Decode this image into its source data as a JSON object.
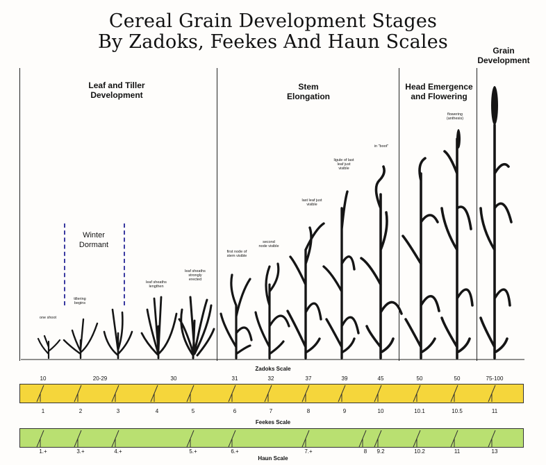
{
  "title": {
    "line1": "Cereal Grain Development Stages",
    "line2": "By Zadoks, Feekes And Haun Scales"
  },
  "sections": {
    "leaf_tiller": "Leaf and Tiller Development",
    "winter_dormant": "Winter Dormant",
    "stem_elongation": "Stem Elongation",
    "head_emergence": "Head Emergence and Flowering",
    "grain_development": "Grain Development"
  },
  "notes": [
    "one shoot",
    "tillering begins",
    "leaf sheaths lengthen",
    "leaf sheaths strongly erected",
    "first node of stem visible",
    "second node visible",
    "last leaf just visible",
    "ligule of last leaf just visible",
    "in \"boot\"",
    "flowering (anthesis)"
  ],
  "zadoks": {
    "label": "Zadoks Scale",
    "values": [
      "10",
      "20-29",
      "30",
      "31",
      "32",
      "37",
      "39",
      "45",
      "50",
      "50",
      "75-100"
    ]
  },
  "feekes": {
    "label": "Feekes Scale",
    "values": [
      "1",
      "2",
      "3",
      "4",
      "5",
      "6",
      "7",
      "8",
      "9",
      "10",
      "10.1",
      "10.5",
      "11"
    ]
  },
  "haun": {
    "label": "Haun Scale",
    "values": [
      "1.+",
      "3.+",
      "4.+",
      "5.+",
      "6.+",
      "7.+",
      "8",
      "9.2",
      "10.2",
      "11",
      "13"
    ]
  },
  "colors": {
    "feekes_bar": "#f5d63b",
    "haun_bar": "#b9e071",
    "plant": "#151515"
  }
}
